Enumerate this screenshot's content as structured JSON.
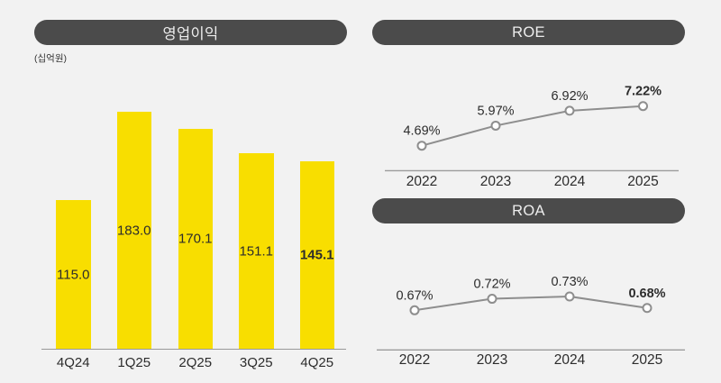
{
  "page": {
    "background_color": "#F2F2F2",
    "accent_bar_color": "#F8DE00",
    "header_pill_color": "#4B4B4B",
    "line_color": "#8E8E8E"
  },
  "chart_data": [
    {
      "id": "operating-profit",
      "type": "bar",
      "title": "영업이익",
      "unit_label": "(십억원)",
      "categories": [
        "4Q24",
        "1Q25",
        "2Q25",
        "3Q25",
        "4Q25"
      ],
      "values": [
        115.0,
        183.0,
        170.1,
        151.1,
        145.1
      ],
      "value_labels": [
        "115.0",
        "183.0",
        "170.1",
        "151.1",
        "145.1"
      ],
      "bold_last_value": true,
      "bar_color": "#F8DE00",
      "ylim": [
        0,
        200
      ],
      "grid": false,
      "legend": "none"
    },
    {
      "id": "roe",
      "type": "line",
      "title": "ROE",
      "categories": [
        "2022",
        "2023",
        "2024",
        "2025"
      ],
      "values": [
        4.69,
        5.97,
        6.92,
        7.22
      ],
      "value_labels": [
        "4.69%",
        "5.97%",
        "6.92%",
        "7.22%"
      ],
      "bold_last_value": true,
      "line_color": "#8E8E8E",
      "marker": "open-circle",
      "grid": false,
      "legend": "none"
    },
    {
      "id": "roa",
      "type": "line",
      "title": "ROA",
      "categories": [
        "2022",
        "2023",
        "2024",
        "2025"
      ],
      "values": [
        0.67,
        0.72,
        0.73,
        0.68
      ],
      "value_labels": [
        "0.67%",
        "0.72%",
        "0.73%",
        "0.68%"
      ],
      "bold_last_value": true,
      "line_color": "#8E8E8E",
      "marker": "open-circle",
      "grid": false,
      "legend": "none"
    }
  ]
}
